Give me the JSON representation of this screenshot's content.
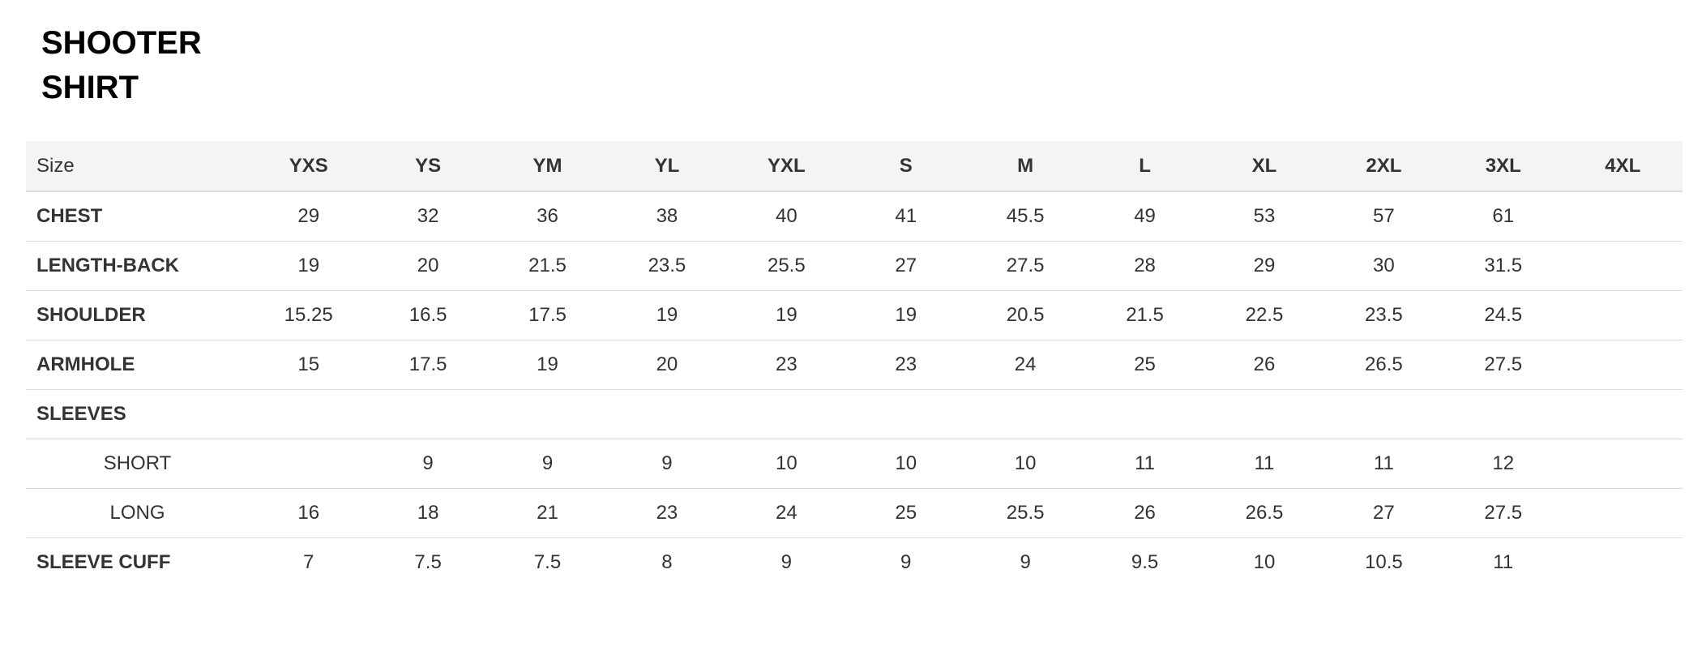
{
  "title": {
    "line1": "SHOOTER",
    "line2": "SHIRT"
  },
  "table": {
    "size_label": "Size",
    "sizes": [
      "YXS",
      "YS",
      "YM",
      "YL",
      "YXL",
      "S",
      "M",
      "L",
      "XL",
      "2XL",
      "3XL",
      "4XL"
    ],
    "rows": [
      {
        "label": "CHEST",
        "sub": false,
        "values": [
          "29",
          "32",
          "36",
          "38",
          "40",
          "41",
          "45.5",
          "49",
          "53",
          "57",
          "61",
          ""
        ]
      },
      {
        "label": "LENGTH-BACK",
        "sub": false,
        "values": [
          "19",
          "20",
          "21.5",
          "23.5",
          "25.5",
          "27",
          "27.5",
          "28",
          "29",
          "30",
          "31.5",
          ""
        ]
      },
      {
        "label": "SHOULDER",
        "sub": false,
        "values": [
          "15.25",
          "16.5",
          "17.5",
          "19",
          "19",
          "19",
          "20.5",
          "21.5",
          "22.5",
          "23.5",
          "24.5",
          ""
        ]
      },
      {
        "label": "ARMHOLE",
        "sub": false,
        "values": [
          "15",
          "17.5",
          "19",
          "20",
          "23",
          "23",
          "24",
          "25",
          "26",
          "26.5",
          "27.5",
          ""
        ]
      },
      {
        "label": "SLEEVES",
        "sub": false,
        "values": [
          "",
          "",
          "",
          "",
          "",
          "",
          "",
          "",
          "",
          "",
          "",
          ""
        ]
      },
      {
        "label": "SHORT",
        "sub": true,
        "values": [
          "",
          "9",
          "9",
          "9",
          "10",
          "10",
          "10",
          "11",
          "11",
          "11",
          "12",
          ""
        ]
      },
      {
        "label": "LONG",
        "sub": true,
        "values": [
          "16",
          "18",
          "21",
          "23",
          "24",
          "25",
          "25.5",
          "26",
          "26.5",
          "27",
          "27.5",
          ""
        ]
      },
      {
        "label": "SLEEVE CUFF",
        "sub": false,
        "values": [
          "7",
          "7.5",
          "7.5",
          "8",
          "9",
          "9",
          "9",
          "9.5",
          "10",
          "10.5",
          "11",
          ""
        ]
      }
    ]
  }
}
